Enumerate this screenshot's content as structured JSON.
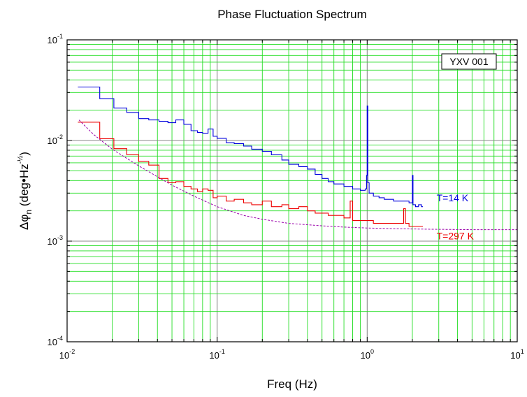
{
  "chart_data": {
    "type": "line",
    "title": "Phase Fluctuation Spectrum",
    "xlabel": "Freq (Hz)",
    "ylabel": {
      "main": "Δφ",
      "sub": "n",
      "unit_open": " (deg•Hz",
      "unit_sup": "-½",
      "unit_close": ")"
    },
    "x_scale": "log",
    "y_scale": "log",
    "xlim": [
      0.01,
      10
    ],
    "ylim": [
      0.0001,
      0.1
    ],
    "grid": true,
    "x_ticks": [
      {
        "value": 0.01,
        "base": "10",
        "exp": "-2"
      },
      {
        "value": 0.1,
        "base": "10",
        "exp": "-1"
      },
      {
        "value": 1,
        "base": "10",
        "exp": "0"
      },
      {
        "value": 10,
        "base": "10",
        "exp": "1"
      }
    ],
    "y_ticks": [
      {
        "value": 0.0001,
        "base": "10",
        "exp": "-4"
      },
      {
        "value": 0.001,
        "base": "10",
        "exp": "-3"
      },
      {
        "value": 0.01,
        "base": "10",
        "exp": "-2"
      },
      {
        "value": 0.1,
        "base": "10",
        "exp": "-1"
      }
    ],
    "legend_box": "YXV 001",
    "series": [
      {
        "name": "T=14 K",
        "color": "#0000dd",
        "style": "step",
        "x": [
          0.0118,
          0.0165,
          0.0205,
          0.025,
          0.03,
          0.035,
          0.041,
          0.047,
          0.053,
          0.06,
          0.067,
          0.074,
          0.08,
          0.087,
          0.094,
          0.1,
          0.115,
          0.13,
          0.15,
          0.17,
          0.2,
          0.23,
          0.27,
          0.3,
          0.35,
          0.4,
          0.45,
          0.5,
          0.55,
          0.6,
          0.7,
          0.8,
          0.9,
          0.97,
          0.99,
          1.0,
          1.01,
          1.03,
          1.1,
          1.2,
          1.3,
          1.5,
          1.7,
          1.9,
          1.98,
          2.0,
          2.02,
          2.1,
          2.2,
          2.3,
          2.35
        ],
        "y": [
          0.034,
          0.026,
          0.021,
          0.019,
          0.0165,
          0.016,
          0.0155,
          0.015,
          0.016,
          0.0145,
          0.0125,
          0.012,
          0.0118,
          0.013,
          0.011,
          0.0105,
          0.0095,
          0.0093,
          0.0088,
          0.0082,
          0.0078,
          0.0072,
          0.0064,
          0.0058,
          0.0055,
          0.0052,
          0.0046,
          0.0042,
          0.0039,
          0.0037,
          0.0035,
          0.0033,
          0.0032,
          0.0033,
          0.0045,
          0.022,
          0.0038,
          0.003,
          0.0028,
          0.0027,
          0.0026,
          0.0025,
          0.0025,
          0.0024,
          0.0024,
          0.0045,
          0.0023,
          0.0022,
          0.0023,
          0.0022,
          0.0022
        ]
      },
      {
        "name": "T=297 K",
        "color": "#ee0000",
        "style": "step",
        "x": [
          0.0118,
          0.0165,
          0.0205,
          0.025,
          0.03,
          0.035,
          0.041,
          0.047,
          0.053,
          0.06,
          0.067,
          0.074,
          0.08,
          0.087,
          0.094,
          0.1,
          0.115,
          0.13,
          0.15,
          0.17,
          0.2,
          0.23,
          0.27,
          0.3,
          0.35,
          0.4,
          0.45,
          0.5,
          0.55,
          0.6,
          0.7,
          0.75,
          0.77,
          0.8,
          0.9,
          1.0,
          1.1,
          1.2,
          1.3,
          1.5,
          1.7,
          1.75,
          1.8,
          1.9,
          2.0,
          2.1,
          2.2,
          2.3,
          2.35
        ],
        "y": [
          0.0152,
          0.0104,
          0.0083,
          0.0072,
          0.0062,
          0.0057,
          0.0042,
          0.0038,
          0.0039,
          0.0035,
          0.0033,
          0.0031,
          0.0033,
          0.0032,
          0.0027,
          0.0028,
          0.0025,
          0.0026,
          0.0024,
          0.0023,
          0.0025,
          0.0022,
          0.0023,
          0.0021,
          0.0022,
          0.002,
          0.0019,
          0.0019,
          0.0018,
          0.0018,
          0.0017,
          0.0017,
          0.0025,
          0.0016,
          0.0016,
          0.0016,
          0.0015,
          0.0015,
          0.0015,
          0.0015,
          0.0015,
          0.0021,
          0.0015,
          0.0014,
          0.0014,
          0.0014,
          0.0014,
          0.0014,
          0.0014
        ]
      },
      {
        "name": "",
        "color": "#9900aa",
        "style": "dashed",
        "x": [
          0.012,
          0.015,
          0.02,
          0.03,
          0.05,
          0.07,
          0.1,
          0.15,
          0.2,
          0.3,
          0.5,
          0.7,
          1.0,
          1.5,
          2.0,
          3.0,
          5.0,
          10.0
        ],
        "y": [
          0.016,
          0.0115,
          0.0082,
          0.0056,
          0.0036,
          0.0028,
          0.0022,
          0.0018,
          0.00165,
          0.0015,
          0.00142,
          0.00138,
          0.00135,
          0.00133,
          0.00132,
          0.00131,
          0.0013,
          0.0013
        ]
      }
    ],
    "annotations": [
      {
        "text": "T=14 K",
        "x": 2.9,
        "y": 0.0027,
        "color": "#0000dd"
      },
      {
        "text": "T=297 K",
        "x": 2.9,
        "y": 0.00113,
        "color": "#ee0000"
      }
    ]
  }
}
